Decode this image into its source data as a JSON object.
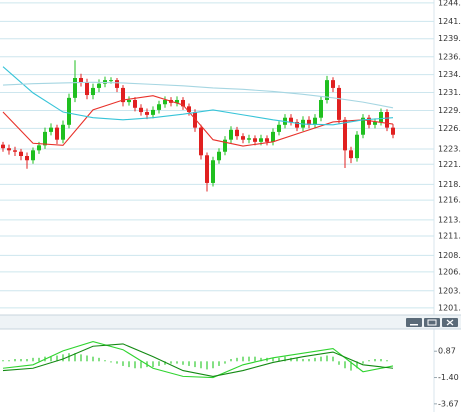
{
  "chart_data": [
    {
      "type": "candlestick",
      "xlim": [
        -0.5,
        65.5
      ],
      "ylim": [
        1201.0,
        1245.0
      ],
      "yticks": [
        {
          "value": 1244.6,
          "label": "1244."
        },
        {
          "value": 1241.99,
          "label": "1241."
        },
        {
          "value": 1239.54,
          "label": "1239."
        },
        {
          "value": 1236.99,
          "label": "1236."
        },
        {
          "value": 1234.48,
          "label": "1234."
        },
        {
          "value": 1231.95,
          "label": "1231."
        },
        {
          "value": 1229.42,
          "label": "1229."
        },
        {
          "value": 1226.89,
          "label": "1226."
        },
        {
          "value": 1223.99,
          "label": "1223."
        },
        {
          "value": 1221.83,
          "label": "1221."
        },
        {
          "value": 1218.99,
          "label": "1218."
        },
        {
          "value": 1216.77,
          "label": "1216."
        },
        {
          "value": 1213.99,
          "label": "1213."
        },
        {
          "value": 1211.71,
          "label": "1211."
        },
        {
          "value": 1208.99,
          "label": "1208."
        },
        {
          "value": 1206.65,
          "label": "1206."
        },
        {
          "value": 1203.99,
          "label": "1203."
        },
        {
          "value": 1201.59,
          "label": "1201."
        }
      ],
      "grid": true,
      "up_color": "#1fbf1f",
      "down_color": "#e02020",
      "open": [
        1224.6,
        1224.1,
        1223.8,
        1223.6,
        1223.0,
        1222.4,
        1223.8,
        1224.5,
        1226.4,
        1227.0,
        1225.3,
        1227.4,
        1231.2,
        1234.0,
        1233.4,
        1231.6,
        1232.6,
        1233.2,
        1233.7,
        1233.7,
        1232.6,
        1230.6,
        1230.9,
        1229.8,
        1229.2,
        1228.8,
        1229.5,
        1230.3,
        1230.9,
        1230.5,
        1230.9,
        1230.0,
        1229.2,
        1227.0,
        1223.1,
        1219.2,
        1222.4,
        1223.6,
        1225.3,
        1226.7,
        1225.8,
        1225.3,
        1225.5,
        1225.0,
        1225.5,
        1225.0,
        1226.4,
        1227.4,
        1228.4,
        1227.8,
        1227.0,
        1228.1,
        1227.4,
        1228.4,
        1230.9,
        1233.7,
        1232.6,
        1228.1,
        1223.8,
        1222.7,
        1226.0,
        1228.4,
        1227.4,
        1227.8,
        1229.2,
        1227.0
      ],
      "high": [
        1225.0,
        1224.6,
        1224.3,
        1224.0,
        1223.5,
        1224.2,
        1225.0,
        1227.0,
        1227.6,
        1227.4,
        1228.0,
        1231.8,
        1236.5,
        1234.6,
        1233.9,
        1233.2,
        1233.8,
        1234.2,
        1234.1,
        1234.0,
        1233.0,
        1231.4,
        1231.3,
        1230.3,
        1229.7,
        1230.0,
        1230.8,
        1231.4,
        1231.3,
        1231.4,
        1231.3,
        1230.4,
        1229.6,
        1227.4,
        1223.5,
        1222.9,
        1224.1,
        1225.8,
        1227.2,
        1227.1,
        1226.2,
        1226.0,
        1225.9,
        1226.0,
        1225.9,
        1226.9,
        1227.9,
        1228.9,
        1228.9,
        1228.2,
        1228.6,
        1228.6,
        1228.9,
        1231.4,
        1234.3,
        1234.1,
        1233.0,
        1228.5,
        1224.3,
        1226.5,
        1228.9,
        1228.8,
        1228.3,
        1229.7,
        1229.6,
        1227.5
      ],
      "low": [
        1223.6,
        1223.2,
        1223.0,
        1222.4,
        1221.2,
        1221.9,
        1223.3,
        1224.0,
        1225.9,
        1224.7,
        1224.8,
        1226.9,
        1230.6,
        1232.8,
        1231.0,
        1231.0,
        1232.0,
        1232.7,
        1233.2,
        1232.0,
        1230.0,
        1230.1,
        1229.3,
        1228.7,
        1228.2,
        1228.3,
        1229.0,
        1229.8,
        1230.0,
        1230.0,
        1229.5,
        1228.7,
        1226.4,
        1222.5,
        1218.0,
        1218.7,
        1221.9,
        1223.1,
        1224.8,
        1225.3,
        1224.8,
        1224.8,
        1224.5,
        1224.5,
        1224.5,
        1224.5,
        1225.9,
        1226.9,
        1227.3,
        1226.5,
        1226.5,
        1226.9,
        1226.9,
        1227.9,
        1230.4,
        1232.0,
        1227.5,
        1221.3,
        1222.0,
        1222.2,
        1225.5,
        1226.9,
        1226.9,
        1227.3,
        1226.5,
        1225.5
      ],
      "close": [
        1224.1,
        1223.8,
        1223.6,
        1223.0,
        1222.4,
        1223.8,
        1224.5,
        1226.4,
        1227.0,
        1225.3,
        1227.4,
        1231.2,
        1234.0,
        1233.4,
        1231.6,
        1232.6,
        1233.2,
        1233.7,
        1233.7,
        1232.6,
        1230.6,
        1230.9,
        1229.8,
        1229.2,
        1228.8,
        1229.5,
        1230.3,
        1230.9,
        1230.5,
        1230.9,
        1230.0,
        1229.2,
        1227.0,
        1223.1,
        1219.2,
        1222.4,
        1223.6,
        1225.3,
        1226.7,
        1225.8,
        1225.3,
        1225.5,
        1225.0,
        1225.5,
        1225.0,
        1226.4,
        1227.4,
        1228.4,
        1227.8,
        1227.0,
        1228.1,
        1227.4,
        1228.4,
        1230.9,
        1233.7,
        1232.6,
        1228.1,
        1223.8,
        1222.7,
        1226.0,
        1228.4,
        1227.4,
        1227.8,
        1229.2,
        1227.0,
        1226.0
      ],
      "series": [
        {
          "color": "#e8312a",
          "x": [
            0,
            5,
            10,
            15,
            20,
            25,
            30,
            35,
            40,
            45,
            50,
            55,
            60,
            65
          ],
          "values": [
            1229.2,
            1224.8,
            1224.5,
            1229.5,
            1230.9,
            1231.5,
            1230.2,
            1225.3,
            1224.4,
            1225.0,
            1226.4,
            1227.8,
            1228.1,
            1227.5
          ]
        },
        {
          "color": "#37c4d8",
          "x": [
            0,
            5,
            10,
            15,
            20,
            25,
            30,
            35,
            40,
            45,
            50,
            55,
            60,
            65
          ],
          "values": [
            1235.6,
            1231.9,
            1229.2,
            1228.4,
            1228.1,
            1228.4,
            1228.9,
            1229.5,
            1228.8,
            1228.1,
            1227.5,
            1227.4,
            1228.1,
            1228.4
          ]
        },
        {
          "color": "#a6d6e2",
          "x": [
            0,
            5,
            10,
            15,
            20,
            25,
            30,
            35,
            40,
            45,
            50,
            55,
            60,
            65
          ],
          "values": [
            1233.0,
            1233.2,
            1233.3,
            1233.4,
            1233.3,
            1233.1,
            1232.9,
            1232.6,
            1232.4,
            1232.1,
            1231.7,
            1231.2,
            1230.6,
            1229.8
          ]
        }
      ]
    },
    {
      "type": "macd",
      "xlim": [
        -0.5,
        65.5
      ],
      "ylim": [
        -4.2,
        2.7
      ],
      "yticks": [
        0.87,
        {
          "value": -1.4,
          "label": "-1.40"
        },
        -3.67
      ],
      "grid": false,
      "histogram_color": "#33cc33",
      "histogram": [
        0.1,
        0.1,
        0.2,
        0.2,
        0.2,
        0.3,
        0.3,
        0.4,
        0.4,
        0.5,
        0.6,
        0.7,
        0.7,
        0.6,
        0.5,
        0.4,
        0.3,
        0.1,
        -0.1,
        -0.2,
        -0.4,
        -0.5,
        -0.6,
        -0.6,
        -0.5,
        -0.5,
        -0.4,
        -0.3,
        -0.2,
        -0.2,
        -0.3,
        -0.4,
        -0.5,
        -0.6,
        -0.7,
        -0.6,
        -0.4,
        -0.2,
        0.2,
        0.3,
        0.4,
        0.4,
        0.4,
        0.3,
        0.3,
        0.3,
        0.3,
        0.4,
        0.3,
        0.3,
        0.2,
        0.2,
        0.3,
        0.4,
        0.5,
        0.4,
        -0.3,
        -0.6,
        -0.8,
        -0.6,
        -0.2,
        0.1,
        0.2,
        0.2,
        0.1,
        0.0
      ],
      "series": [
        {
          "color": "#2fd42f",
          "x": [
            0,
            5,
            10,
            15,
            20,
            25,
            30,
            35,
            40,
            45,
            50,
            55,
            60,
            65
          ],
          "values": [
            -0.6,
            -0.3,
            0.9,
            1.7,
            1.0,
            -0.6,
            -1.3,
            -1.4,
            -0.3,
            0.3,
            0.7,
            1.1,
            -0.9,
            -0.4
          ]
        },
        {
          "color": "#138a13",
          "x": [
            0,
            5,
            10,
            15,
            20,
            25,
            30,
            35,
            40,
            45,
            50,
            55,
            60,
            65
          ],
          "values": [
            -0.8,
            -0.6,
            0.2,
            1.3,
            1.5,
            0.4,
            -0.8,
            -1.3,
            -0.8,
            -0.1,
            0.4,
            0.8,
            -0.3,
            -0.6
          ]
        }
      ]
    }
  ]
}
